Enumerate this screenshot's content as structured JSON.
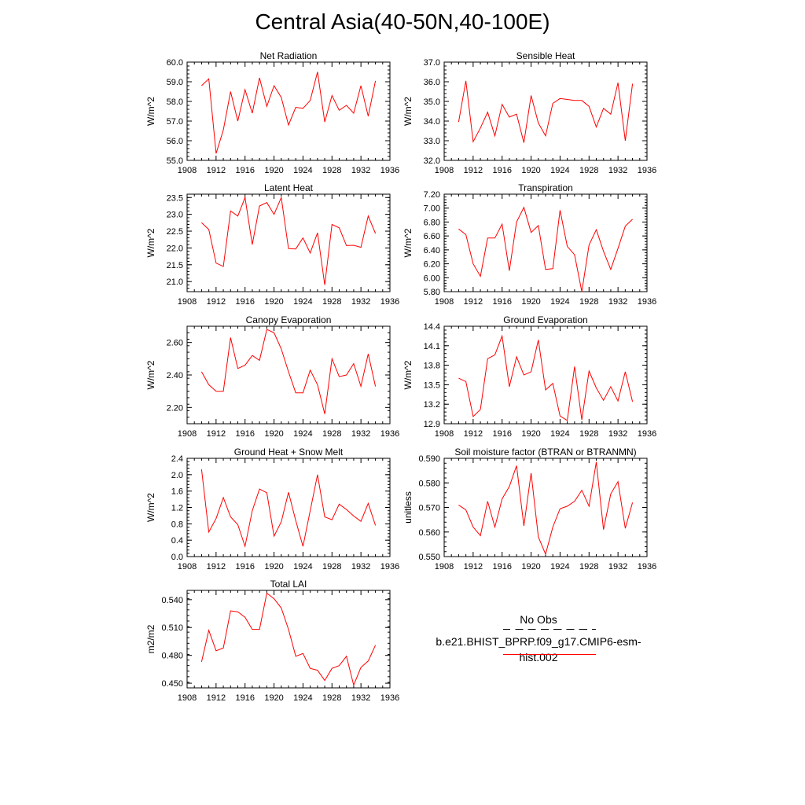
{
  "title": "Central Asia(40-50N,40-100E)",
  "legend": {
    "obs_label": "No Obs",
    "model_label": "b.e21.BHIST_BPRP.f09_g17.CMIP6-esm-hist.002",
    "model_color": "#ff0000",
    "obs_color": "#000000"
  },
  "chart_data": [
    {
      "type": "line",
      "title": "Net Radiation",
      "ylabel": "W/m^2",
      "xlim": [
        1908,
        1936
      ],
      "ylim": [
        55.0,
        60.0
      ],
      "xticks": [
        "1908",
        "1912",
        "1916",
        "1920",
        "1924",
        "1928",
        "1932",
        "1936"
      ],
      "yticks": [
        "55.0",
        "56.0",
        "57.0",
        "58.0",
        "59.0",
        "60.0"
      ],
      "x": [
        1910,
        1911,
        1912,
        1913,
        1914,
        1915,
        1916,
        1917,
        1918,
        1919,
        1920,
        1921,
        1922,
        1923,
        1924,
        1925,
        1926,
        1927,
        1928,
        1929,
        1930,
        1931,
        1932,
        1933,
        1934
      ],
      "values": [
        58.8,
        59.15,
        55.35,
        56.55,
        58.5,
        57.0,
        58.6,
        57.4,
        59.2,
        57.75,
        58.8,
        58.2,
        56.8,
        57.7,
        57.65,
        58.05,
        59.5,
        56.95,
        58.3,
        57.55,
        57.8,
        57.4,
        58.8,
        57.25,
        59.05
      ]
    },
    {
      "type": "line",
      "title": "Sensible Heat",
      "ylabel": "W/m^2",
      "xlim": [
        1908,
        1936
      ],
      "ylim": [
        32.0,
        37.0
      ],
      "xticks": [
        "1908",
        "1912",
        "1916",
        "1920",
        "1924",
        "1928",
        "1932",
        "1936"
      ],
      "yticks": [
        "32.0",
        "33.0",
        "34.0",
        "35.0",
        "36.0",
        "37.0"
      ],
      "x": [
        1910,
        1911,
        1912,
        1913,
        1914,
        1915,
        1916,
        1917,
        1918,
        1919,
        1920,
        1921,
        1922,
        1923,
        1924,
        1925,
        1926,
        1927,
        1928,
        1929,
        1930,
        1931,
        1932,
        1933,
        1934
      ],
      "values": [
        33.95,
        36.05,
        32.95,
        33.65,
        34.45,
        33.25,
        34.85,
        34.2,
        34.35,
        32.9,
        35.3,
        33.9,
        33.25,
        34.9,
        35.15,
        35.1,
        35.05,
        35.05,
        34.75,
        33.7,
        34.65,
        34.35,
        35.95,
        33.0,
        35.9
      ]
    },
    {
      "type": "line",
      "title": "Latent Heat",
      "ylabel": "W/m^2",
      "xlim": [
        1908,
        1936
      ],
      "ylim": [
        20.7,
        23.6
      ],
      "xticks": [
        "1908",
        "1912",
        "1916",
        "1920",
        "1924",
        "1928",
        "1932",
        "1936"
      ],
      "yticks": [
        "21.0",
        "21.5",
        "22.0",
        "22.5",
        "23.0",
        "23.5"
      ],
      "x": [
        1910,
        1911,
        1912,
        1913,
        1914,
        1915,
        1916,
        1917,
        1918,
        1919,
        1920,
        1921,
        1922,
        1923,
        1924,
        1925,
        1926,
        1927,
        1928,
        1929,
        1930,
        1931,
        1932,
        1933,
        1934
      ],
      "values": [
        22.75,
        22.55,
        21.55,
        21.45,
        23.1,
        22.95,
        23.5,
        22.1,
        23.25,
        23.35,
        23.0,
        23.5,
        21.98,
        21.97,
        22.3,
        21.85,
        22.45,
        20.9,
        22.7,
        22.6,
        22.07,
        22.08,
        22.02,
        22.95,
        22.43
      ]
    },
    {
      "type": "line",
      "title": "Transpiration",
      "ylabel": "W/m^2",
      "xlim": [
        1908,
        1936
      ],
      "ylim": [
        5.8,
        7.2
      ],
      "xticks": [
        "1908",
        "1912",
        "1916",
        "1920",
        "1924",
        "1928",
        "1932",
        "1936"
      ],
      "yticks": [
        "5.80",
        "6.00",
        "6.20",
        "6.40",
        "6.60",
        "6.80",
        "7.00",
        "7.20"
      ],
      "x": [
        1910,
        1911,
        1912,
        1913,
        1914,
        1915,
        1916,
        1917,
        1918,
        1919,
        1920,
        1921,
        1922,
        1923,
        1924,
        1925,
        1926,
        1927,
        1928,
        1929,
        1930,
        1931,
        1932,
        1933,
        1934
      ],
      "values": [
        6.7,
        6.62,
        6.2,
        6.02,
        6.57,
        6.57,
        6.77,
        6.1,
        6.8,
        7.01,
        6.65,
        6.75,
        6.12,
        6.13,
        6.97,
        6.45,
        6.33,
        5.8,
        6.47,
        6.69,
        6.38,
        6.12,
        6.42,
        6.74,
        6.84
      ]
    },
    {
      "type": "line",
      "title": "Canopy Evaporation",
      "ylabel": "W/m^2",
      "xlim": [
        1908,
        1936
      ],
      "ylim": [
        2.1,
        2.7
      ],
      "xticks": [
        "1908",
        "1912",
        "1916",
        "1920",
        "1924",
        "1928",
        "1932",
        "1936"
      ],
      "yticks": [
        "2.20",
        "2.40",
        "2.60"
      ],
      "x": [
        1910,
        1911,
        1912,
        1913,
        1914,
        1915,
        1916,
        1917,
        1918,
        1919,
        1920,
        1921,
        1922,
        1923,
        1924,
        1925,
        1926,
        1927,
        1928,
        1929,
        1930,
        1931,
        1932,
        1933,
        1934
      ],
      "values": [
        2.42,
        2.34,
        2.3,
        2.3,
        2.63,
        2.44,
        2.46,
        2.52,
        2.49,
        2.68,
        2.66,
        2.56,
        2.42,
        2.29,
        2.29,
        2.43,
        2.34,
        2.16,
        2.5,
        2.39,
        2.4,
        2.47,
        2.33,
        2.53,
        2.33
      ]
    },
    {
      "type": "line",
      "title": "Ground Evaporation",
      "ylabel": "W/m^2",
      "xlim": [
        1908,
        1936
      ],
      "ylim": [
        12.9,
        14.4
      ],
      "xticks": [
        "1908",
        "1912",
        "1916",
        "1920",
        "1924",
        "1928",
        "1932",
        "1936"
      ],
      "yticks": [
        "12.9",
        "13.2",
        "13.5",
        "13.8",
        "14.1",
        "14.4"
      ],
      "x": [
        1910,
        1911,
        1912,
        1913,
        1914,
        1915,
        1916,
        1917,
        1918,
        1919,
        1920,
        1921,
        1922,
        1923,
        1924,
        1925,
        1926,
        1927,
        1928,
        1929,
        1930,
        1931,
        1932,
        1933,
        1934
      ],
      "values": [
        13.6,
        13.55,
        13.01,
        13.12,
        13.9,
        13.96,
        14.25,
        13.47,
        13.93,
        13.65,
        13.7,
        14.19,
        13.42,
        13.52,
        13.02,
        12.95,
        13.78,
        12.96,
        13.71,
        13.45,
        13.26,
        13.47,
        13.25,
        13.7,
        13.24
      ]
    },
    {
      "type": "line",
      "title": "Ground Heat + Snow Melt",
      "ylabel": "W/m^2",
      "xlim": [
        1908,
        1936
      ],
      "ylim": [
        0.0,
        2.4
      ],
      "xticks": [
        "1908",
        "1912",
        "1916",
        "1920",
        "1924",
        "1928",
        "1932",
        "1936"
      ],
      "yticks": [
        "0.0",
        "0.4",
        "0.8",
        "1.2",
        "1.6",
        "2.0",
        "2.4"
      ],
      "x": [
        1910,
        1911,
        1912,
        1913,
        1914,
        1915,
        1916,
        1917,
        1918,
        1919,
        1920,
        1921,
        1922,
        1923,
        1924,
        1925,
        1926,
        1927,
        1928,
        1929,
        1930,
        1931,
        1932,
        1933,
        1934
      ],
      "values": [
        2.13,
        0.6,
        0.93,
        1.44,
        0.97,
        0.78,
        0.25,
        1.12,
        1.65,
        1.56,
        0.5,
        0.85,
        1.57,
        0.88,
        0.25,
        1.12,
        2.0,
        0.97,
        0.9,
        1.28,
        1.15,
        0.99,
        0.86,
        1.3,
        0.76
      ]
    },
    {
      "type": "line",
      "title": "Soil moisture factor (BTRAN or BTRANMN)",
      "ylabel": "unitless",
      "xlim": [
        1908,
        1936
      ],
      "ylim": [
        0.55,
        0.59
      ],
      "xticks": [
        "1908",
        "1912",
        "1916",
        "1920",
        "1924",
        "1928",
        "1932",
        "1936"
      ],
      "yticks": [
        "0.550",
        "0.560",
        "0.570",
        "0.580",
        "0.590"
      ],
      "x": [
        1910,
        1911,
        1912,
        1913,
        1914,
        1915,
        1916,
        1917,
        1918,
        1919,
        1920,
        1921,
        1922,
        1923,
        1924,
        1925,
        1926,
        1927,
        1928,
        1929,
        1930,
        1931,
        1932,
        1933,
        1934
      ],
      "values": [
        0.571,
        0.569,
        0.562,
        0.5585,
        0.5725,
        0.562,
        0.5735,
        0.5785,
        0.587,
        0.5625,
        0.584,
        0.558,
        0.551,
        0.562,
        0.5695,
        0.5705,
        0.5725,
        0.577,
        0.5705,
        0.5885,
        0.561,
        0.5755,
        0.5805,
        0.5615,
        0.572
      ]
    },
    {
      "type": "line",
      "title": "Total LAI",
      "ylabel": "m2/m2",
      "xlim": [
        1908,
        1936
      ],
      "ylim": [
        0.445,
        0.55
      ],
      "xticks": [
        "1908",
        "1912",
        "1916",
        "1920",
        "1924",
        "1928",
        "1932",
        "1936"
      ],
      "yticks": [
        "0.450",
        "0.480",
        "0.510",
        "0.540"
      ],
      "x": [
        1910,
        1911,
        1912,
        1913,
        1914,
        1915,
        1916,
        1917,
        1918,
        1919,
        1920,
        1921,
        1922,
        1923,
        1924,
        1925,
        1926,
        1927,
        1928,
        1929,
        1930,
        1931,
        1932,
        1933,
        1934
      ],
      "values": [
        0.473,
        0.507,
        0.485,
        0.488,
        0.528,
        0.527,
        0.521,
        0.508,
        0.508,
        0.547,
        0.541,
        0.531,
        0.508,
        0.479,
        0.482,
        0.466,
        0.464,
        0.453,
        0.466,
        0.469,
        0.479,
        0.448,
        0.467,
        0.474,
        0.491
      ]
    }
  ]
}
